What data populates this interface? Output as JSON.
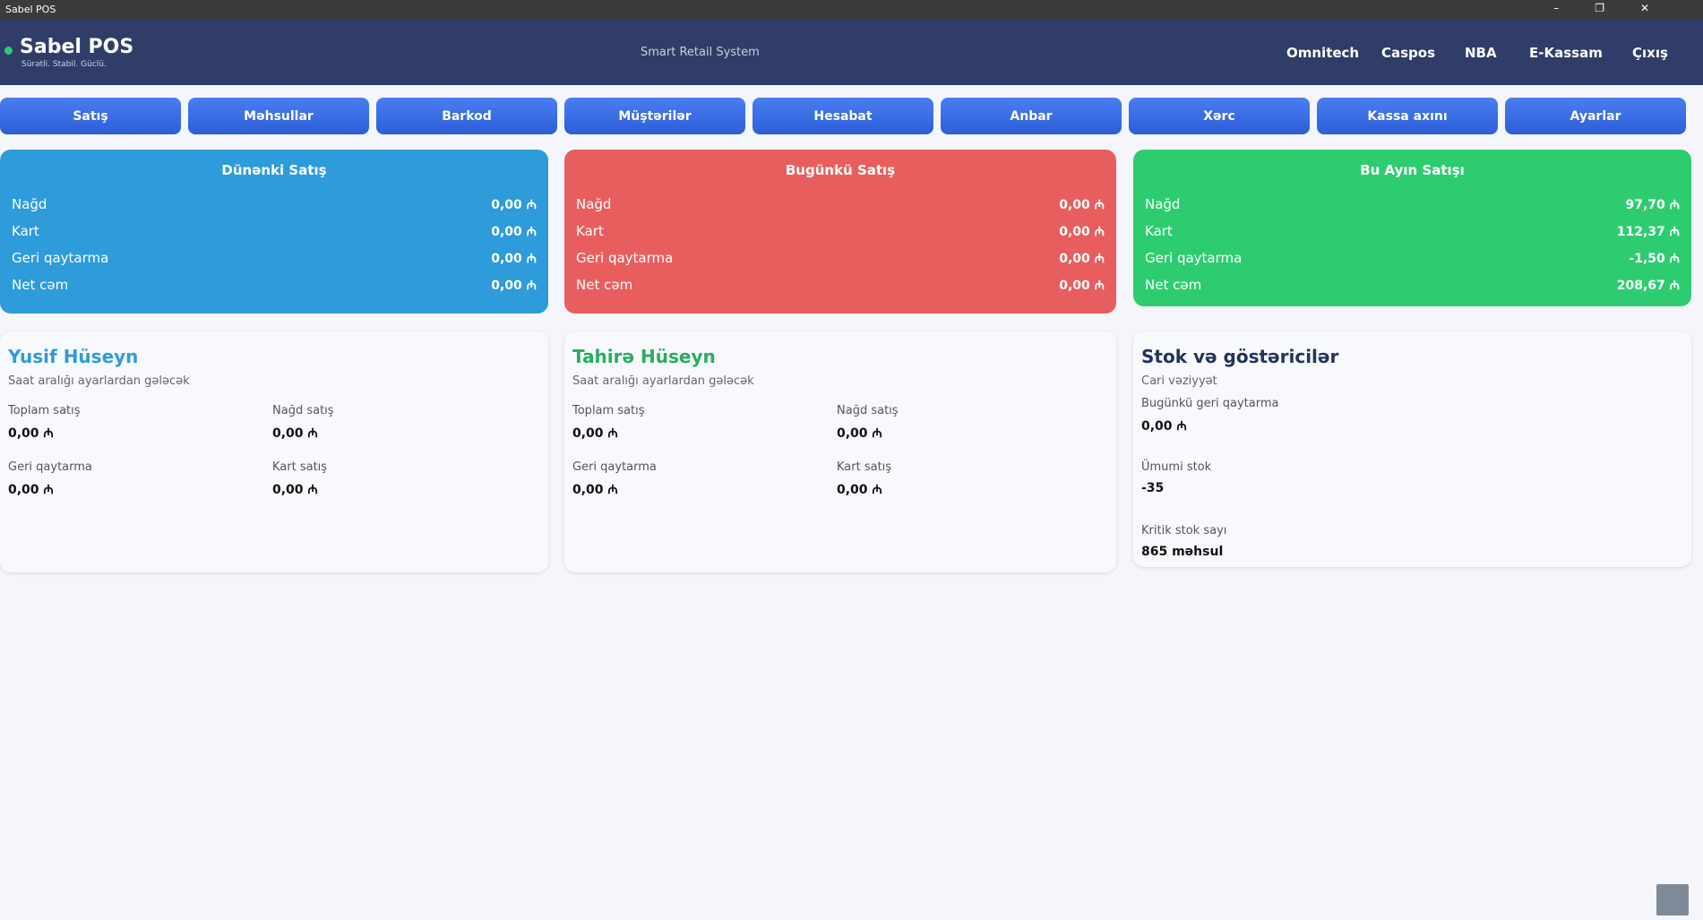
{
  "window": {
    "title": "Sabel POS"
  },
  "header": {
    "brand": "Sabel POS",
    "tagline": "Sürətli. Stabil. Güclü.",
    "center": "Smart Retail System",
    "links": [
      "Omnitech",
      "Caspos",
      "NBA",
      "E-Kassam",
      "Çıxış"
    ]
  },
  "nav": [
    "Satış",
    "Məhsullar",
    "Barkod",
    "Müştərilər",
    "Hesabat",
    "Anbar",
    "Xərc",
    "Kassa axını",
    "Ayarlar"
  ],
  "summary": [
    {
      "title": "Dünənki Satış",
      "rows": [
        [
          "Nağd",
          "0,00 ₼"
        ],
        [
          "Kart",
          "0,00 ₼"
        ],
        [
          "Geri qaytarma",
          "0,00 ₼"
        ],
        [
          "Net cəm",
          "0,00 ₼"
        ]
      ]
    },
    {
      "title": "Bugünkü Satış",
      "rows": [
        [
          "Nağd",
          "0,00 ₼"
        ],
        [
          "Kart",
          "0,00 ₼"
        ],
        [
          "Geri qaytarma",
          "0,00 ₼"
        ],
        [
          "Net cəm",
          "0,00 ₼"
        ]
      ]
    },
    {
      "title": "Bu Ayın Satışı",
      "rows": [
        [
          "Nağd",
          "97,70 ₼"
        ],
        [
          "Kart",
          "112,37 ₼"
        ],
        [
          "Geri qaytarma",
          "-1,50 ₼"
        ],
        [
          "Net cəm",
          "208,67 ₼"
        ]
      ]
    }
  ],
  "staff": [
    {
      "name": "Yusif Hüseyn",
      "note": "Saat aralığı ayarlardan gələcək",
      "stats": [
        [
          "Toplam satış",
          "0,00 ₼"
        ],
        [
          "Nağd satış",
          "0,00 ₼"
        ],
        [
          "Geri qaytarma",
          "0,00 ₼"
        ],
        [
          "Kart satış",
          "0,00 ₼"
        ]
      ]
    },
    {
      "name": "Tahirə Hüseyn",
      "note": "Saat aralığı ayarlardan gələcək",
      "stats": [
        [
          "Toplam satış",
          "0,00 ₼"
        ],
        [
          "Nağd satış",
          "0,00 ₼"
        ],
        [
          "Geri qaytarma",
          "0,00 ₼"
        ],
        [
          "Kart satış",
          "0,00 ₼"
        ]
      ]
    }
  ],
  "stock": {
    "title": "Stok və göstəricilər",
    "note": "Cari vəziyyət",
    "stats": [
      [
        "Bugünkü geri qaytarma",
        "0,00 ₼"
      ],
      [
        "Ümumi stok",
        "-35"
      ],
      [
        "Kritik stok sayı",
        "865 məhsul"
      ]
    ]
  }
}
